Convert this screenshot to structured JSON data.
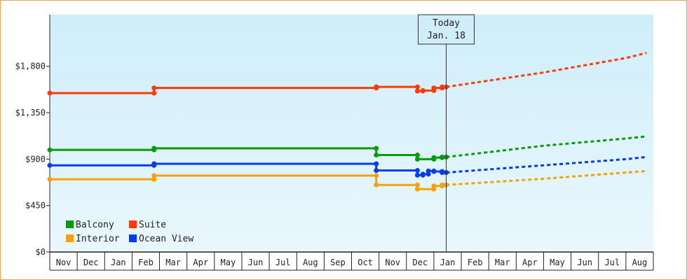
{
  "chart_data": {
    "type": "line",
    "title": "",
    "xlabel": "",
    "ylabel": "",
    "x_unit": "month",
    "x_start": "Nov 2022",
    "month_labels": [
      "Nov",
      "Dec",
      "Jan",
      "Feb",
      "Mar",
      "Apr",
      "May",
      "Jun",
      "Jul",
      "Aug",
      "Sep",
      "Oct",
      "Nov",
      "Dec",
      "Jan",
      "Feb",
      "Mar",
      "Apr",
      "May",
      "Jun",
      "Jul",
      "Aug"
    ],
    "ylim": [
      0,
      2300
    ],
    "yticks": [
      0,
      450,
      900,
      1350,
      1800
    ],
    "ytick_labels": [
      "$0",
      "$450",
      "$900",
      "$1,350",
      "$1,800"
    ],
    "grid": false,
    "legend_position": "bottom-left",
    "today_marker": {
      "line1": "Today",
      "line2": "Jan. 18",
      "x": 14.45
    },
    "colors": {
      "background_top": "#cfeefa",
      "background_bottom": "#eaf7fd",
      "frame": "#e0a85a",
      "Balcony": "#0a9a0a",
      "Suite": "#ff3a0a",
      "Interior": "#f5a20a",
      "Ocean View": "#0a3aee"
    },
    "legend": [
      "Balcony",
      "Suite",
      "Interior",
      "Ocean View"
    ],
    "series": [
      {
        "name": "Suite",
        "color": "#ff3a0a",
        "history": [
          [
            0,
            1540
          ],
          [
            3.8,
            1540
          ],
          [
            3.8,
            1590
          ],
          [
            11.9,
            1590
          ],
          [
            11.9,
            1600
          ],
          [
            13.4,
            1600
          ],
          [
            13.4,
            1560
          ],
          [
            13.6,
            1560
          ],
          [
            13.6,
            1565
          ],
          [
            14.0,
            1565
          ],
          [
            14.0,
            1590
          ],
          [
            14.3,
            1590
          ],
          [
            14.3,
            1600
          ],
          [
            14.45,
            1600
          ]
        ],
        "forecast": [
          [
            14.45,
            1600
          ],
          [
            18,
            1740
          ],
          [
            21,
            1880
          ],
          [
            21.75,
            1930
          ]
        ]
      },
      {
        "name": "Balcony",
        "color": "#0a9a0a",
        "history": [
          [
            0,
            990
          ],
          [
            3.8,
            990
          ],
          [
            3.8,
            1005
          ],
          [
            11.9,
            1005
          ],
          [
            11.9,
            940
          ],
          [
            13.4,
            940
          ],
          [
            13.4,
            900
          ],
          [
            13.6,
            900
          ],
          [
            13.6,
            900
          ],
          [
            14.0,
            900
          ],
          [
            14.0,
            915
          ],
          [
            14.3,
            915
          ],
          [
            14.3,
            920
          ],
          [
            14.45,
            920
          ]
        ],
        "forecast": [
          [
            14.45,
            920
          ],
          [
            18,
            1030
          ],
          [
            21,
            1100
          ],
          [
            21.75,
            1120
          ]
        ]
      },
      {
        "name": "Ocean View",
        "color": "#0a3aee",
        "history": [
          [
            0,
            840
          ],
          [
            3.8,
            840
          ],
          [
            3.8,
            855
          ],
          [
            11.9,
            855
          ],
          [
            11.9,
            790
          ],
          [
            13.4,
            790
          ],
          [
            13.4,
            745
          ],
          [
            13.6,
            745
          ],
          [
            13.6,
            755
          ],
          [
            13.8,
            755
          ],
          [
            13.8,
            785
          ],
          [
            14.0,
            785
          ],
          [
            14.0,
            780
          ],
          [
            14.3,
            780
          ],
          [
            14.3,
            770
          ],
          [
            14.45,
            770
          ]
        ],
        "forecast": [
          [
            14.45,
            770
          ],
          [
            18,
            840
          ],
          [
            21,
            900
          ],
          [
            21.75,
            920
          ]
        ]
      },
      {
        "name": "Interior",
        "color": "#f5a20a",
        "history": [
          [
            0,
            705
          ],
          [
            3.8,
            705
          ],
          [
            3.8,
            740
          ],
          [
            11.9,
            740
          ],
          [
            11.9,
            650
          ],
          [
            13.4,
            650
          ],
          [
            13.4,
            610
          ],
          [
            13.6,
            610
          ],
          [
            13.6,
            610
          ],
          [
            14.0,
            610
          ],
          [
            14.0,
            640
          ],
          [
            14.3,
            640
          ],
          [
            14.3,
            650
          ],
          [
            14.45,
            650
          ]
        ],
        "forecast": [
          [
            14.45,
            650
          ],
          [
            18,
            710
          ],
          [
            21,
            770
          ],
          [
            21.75,
            785
          ]
        ]
      }
    ]
  }
}
